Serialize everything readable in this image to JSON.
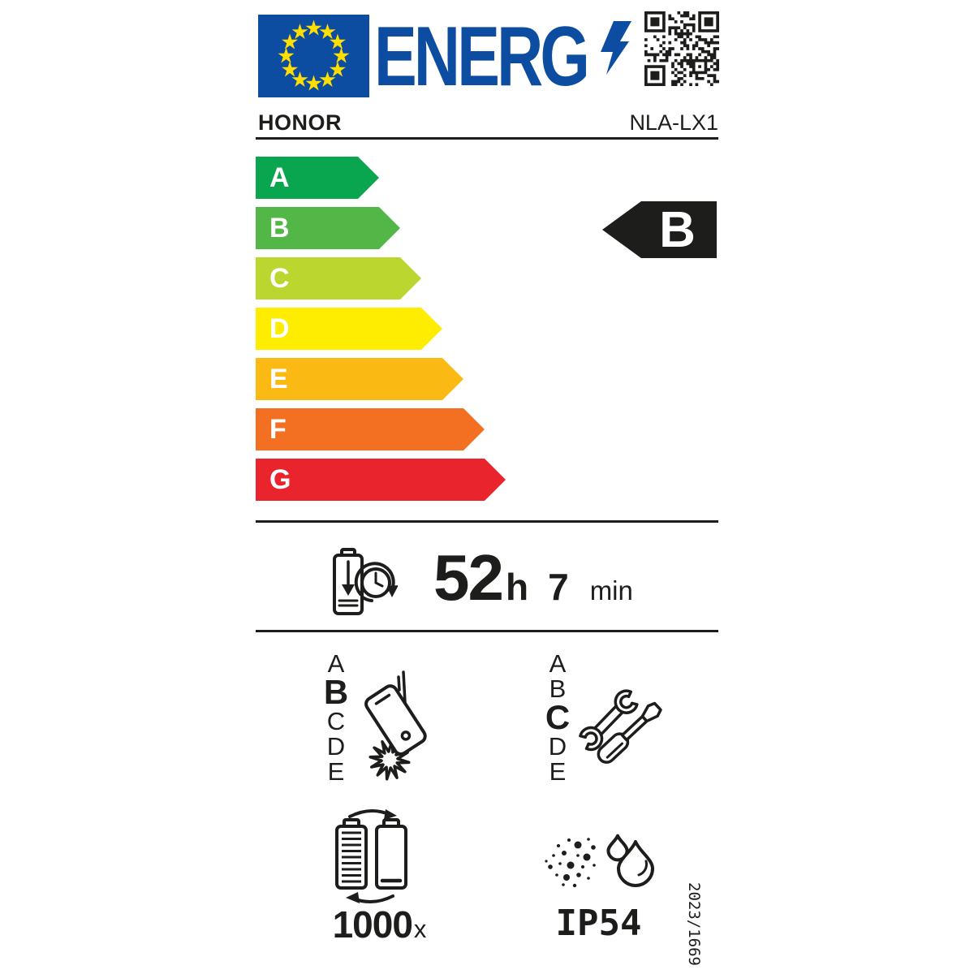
{
  "header": {
    "logo_text": "ENERG",
    "qr_code": "QR code"
  },
  "product": {
    "brand": "HONOR",
    "model": "NLA-LX1"
  },
  "energy_scale": [
    {
      "grade": "A",
      "color": "#0AA64F"
    },
    {
      "grade": "B",
      "color": "#52B747"
    },
    {
      "grade": "C",
      "color": "#BCD630"
    },
    {
      "grade": "D",
      "color": "#FFED00"
    },
    {
      "grade": "E",
      "color": "#FBB914"
    },
    {
      "grade": "F",
      "color": "#F36F21"
    },
    {
      "grade": "G",
      "color": "#E9242D"
    }
  ],
  "rating": {
    "grade": "B"
  },
  "battery_endurance": {
    "hours": "52",
    "hours_unit": "h",
    "minutes": "7",
    "minutes_unit": "min"
  },
  "drop_reliability": {
    "scale": [
      "A",
      "B",
      "C",
      "D",
      "E"
    ],
    "selected": "B"
  },
  "repairability": {
    "scale": [
      "A",
      "B",
      "C",
      "D",
      "E"
    ],
    "selected": "C"
  },
  "battery_cycles": {
    "value": "1000",
    "unit": "x"
  },
  "ingress_protection": {
    "rating": "IP54"
  },
  "regulation": "2023/1669",
  "icons": {
    "eu-flag-icon": "blue flag with 12 yellow stars",
    "lightning-bolt-icon": "blue lightning bolt",
    "qr-code-icon": "qr pattern",
    "battery-endurance-icon": "battery with down arrow and clock",
    "falling-phone-icon": "phone dropping with impact burst",
    "repair-tools-icon": "wrench and screwdriver",
    "battery-cycles-icon": "two batteries with cycle arrows",
    "dust-water-icon": "dust particles and water drops"
  },
  "colors": {
    "label_blue": "#0C4DA2",
    "star_yellow": "#FFDE00",
    "text_black": "#1D1D1B"
  }
}
